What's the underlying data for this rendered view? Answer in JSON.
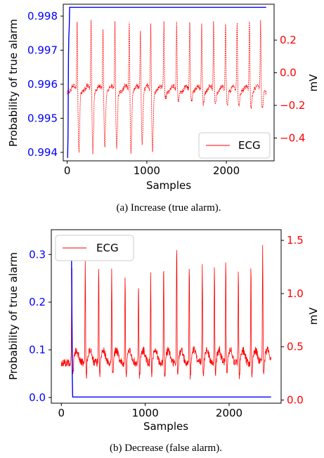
{
  "chart_data": [
    {
      "type": "line",
      "caption": "(a) Increase (true alarm).",
      "xlabel": "Samples",
      "ylabel_left": "Probability of true alarm",
      "ylabel_right": "mV",
      "xlim": [
        -50,
        2600
      ],
      "ylim_left": [
        0.99375,
        0.99835
      ],
      "ylim_right": [
        -0.54,
        0.42
      ],
      "xticks": [
        0,
        1000,
        2000
      ],
      "xtick_labels": [
        "0",
        "1000",
        "2000"
      ],
      "yticks_left": [
        0.994,
        0.995,
        0.996,
        0.997,
        0.998
      ],
      "ytick_labels_left": [
        "0.994",
        "0.995",
        "0.996",
        "0.997",
        "0.998"
      ],
      "yticks_right": [
        -0.4,
        -0.2,
        0.0,
        0.2
      ],
      "ytick_labels_right": [
        "−0.4",
        "−0.2",
        "0.0",
        "0.2"
      ],
      "legend": {
        "position": "bottom-right",
        "entries": [
          "ECG"
        ]
      },
      "colors": {
        "probability": "#0000ff",
        "ecg": "#ff0000",
        "left_axis": "#0000ff",
        "right_axis": "#ff0000"
      },
      "series": [
        {
          "axis": "left",
          "color": "#0000ff",
          "x": [
            0,
            5,
            10,
            15,
            20,
            25,
            30,
            35,
            40,
            2500
          ],
          "y": [
            0.99385,
            0.99385,
            0.9945,
            0.9968,
            0.9974,
            0.99765,
            0.99826,
            0.99826,
            0.99826,
            0.99826
          ]
        },
        {
          "name": "ECG",
          "axis": "right",
          "color": "#ff0000",
          "beats": [
            {
              "x": 125,
              "peak": 0.33,
              "trough": -0.48
            },
            {
              "x": 300,
              "peak": 0.33,
              "trough": -0.49
            },
            {
              "x": 450,
              "peak": 0.29,
              "trough": -0.46
            },
            {
              "x": 600,
              "peak": 0.32,
              "trough": -0.47
            },
            {
              "x": 780,
              "peak": 0.32,
              "trough": -0.49
            },
            {
              "x": 920,
              "peak": 0.28,
              "trough": -0.43
            },
            {
              "x": 1050,
              "peak": 0.32,
              "trough": -0.48
            },
            {
              "x": 1215,
              "peak": 0.31,
              "trough": -0.16
            },
            {
              "x": 1375,
              "peak": 0.32,
              "trough": -0.17
            },
            {
              "x": 1540,
              "peak": 0.32,
              "trough": -0.18
            },
            {
              "x": 1690,
              "peak": 0.31,
              "trough": -0.19
            },
            {
              "x": 1840,
              "peak": 0.33,
              "trough": -0.2
            },
            {
              "x": 1990,
              "peak": 0.31,
              "trough": -0.2
            },
            {
              "x": 2135,
              "peak": 0.31,
              "trough": -0.21
            },
            {
              "x": 2290,
              "peak": 0.33,
              "trough": -0.22
            },
            {
              "x": 2430,
              "peak": 0.31,
              "trough": -0.22
            }
          ],
          "baseline": -0.12,
          "x_start": 0,
          "x_end": 2500
        }
      ]
    },
    {
      "type": "line",
      "caption": "(b) Decrease (false alarm).",
      "xlabel": "Samples",
      "ylabel_left": "Probability of true alarm",
      "ylabel_right": "mV",
      "xlim": [
        -120,
        2620
      ],
      "ylim_left": [
        -0.012,
        0.352
      ],
      "ylim_right": [
        -0.03,
        1.6
      ],
      "xticks": [
        0,
        1000,
        2000
      ],
      "xtick_labels": [
        "0",
        "1000",
        "2000"
      ],
      "yticks_left": [
        0.0,
        0.1,
        0.2,
        0.3
      ],
      "ytick_labels_left": [
        "0.0",
        "0.1",
        "0.2",
        "0.3"
      ],
      "yticks_right": [
        0.0,
        0.5,
        1.0,
        1.5
      ],
      "ytick_labels_right": [
        "0.0",
        "0.5",
        "1.0",
        "1.5"
      ],
      "legend": {
        "position": "top-left",
        "entries": [
          "ECG"
        ]
      },
      "colors": {
        "probability": "#0000ff",
        "ecg": "#ff0000",
        "left_axis": "#0000ff",
        "right_axis": "#ff0000"
      },
      "series": [
        {
          "axis": "left",
          "color": "#0000ff",
          "x": [
            0,
            120,
            125,
            130,
            135,
            2500
          ],
          "y": [
            0.3,
            0.3,
            0.2,
            0.05,
            0.001,
            0.001
          ]
        },
        {
          "name": "ECG",
          "axis": "right",
          "color": "#ff0000",
          "beats": [
            {
              "x": 125,
              "peak": 1.27
            },
            {
              "x": 285,
              "peak": 1.3
            },
            {
              "x": 445,
              "peak": 1.3
            },
            {
              "x": 600,
              "peak": 1.22
            },
            {
              "x": 760,
              "peak": 1.21
            },
            {
              "x": 920,
              "peak": 1.1
            },
            {
              "x": 1065,
              "peak": 1.2
            },
            {
              "x": 1220,
              "peak": 1.3
            },
            {
              "x": 1375,
              "peak": 1.48
            },
            {
              "x": 1525,
              "peak": 1.3
            },
            {
              "x": 1680,
              "peak": 1.32
            },
            {
              "x": 1825,
              "peak": 1.28
            },
            {
              "x": 1960,
              "peak": 1.3
            },
            {
              "x": 2110,
              "peak": 1.25
            },
            {
              "x": 2260,
              "peak": 1.28
            },
            {
              "x": 2400,
              "peak": 1.45
            }
          ],
          "baseline": 0.35,
          "x_start": 0,
          "x_end": 2500
        }
      ]
    }
  ]
}
